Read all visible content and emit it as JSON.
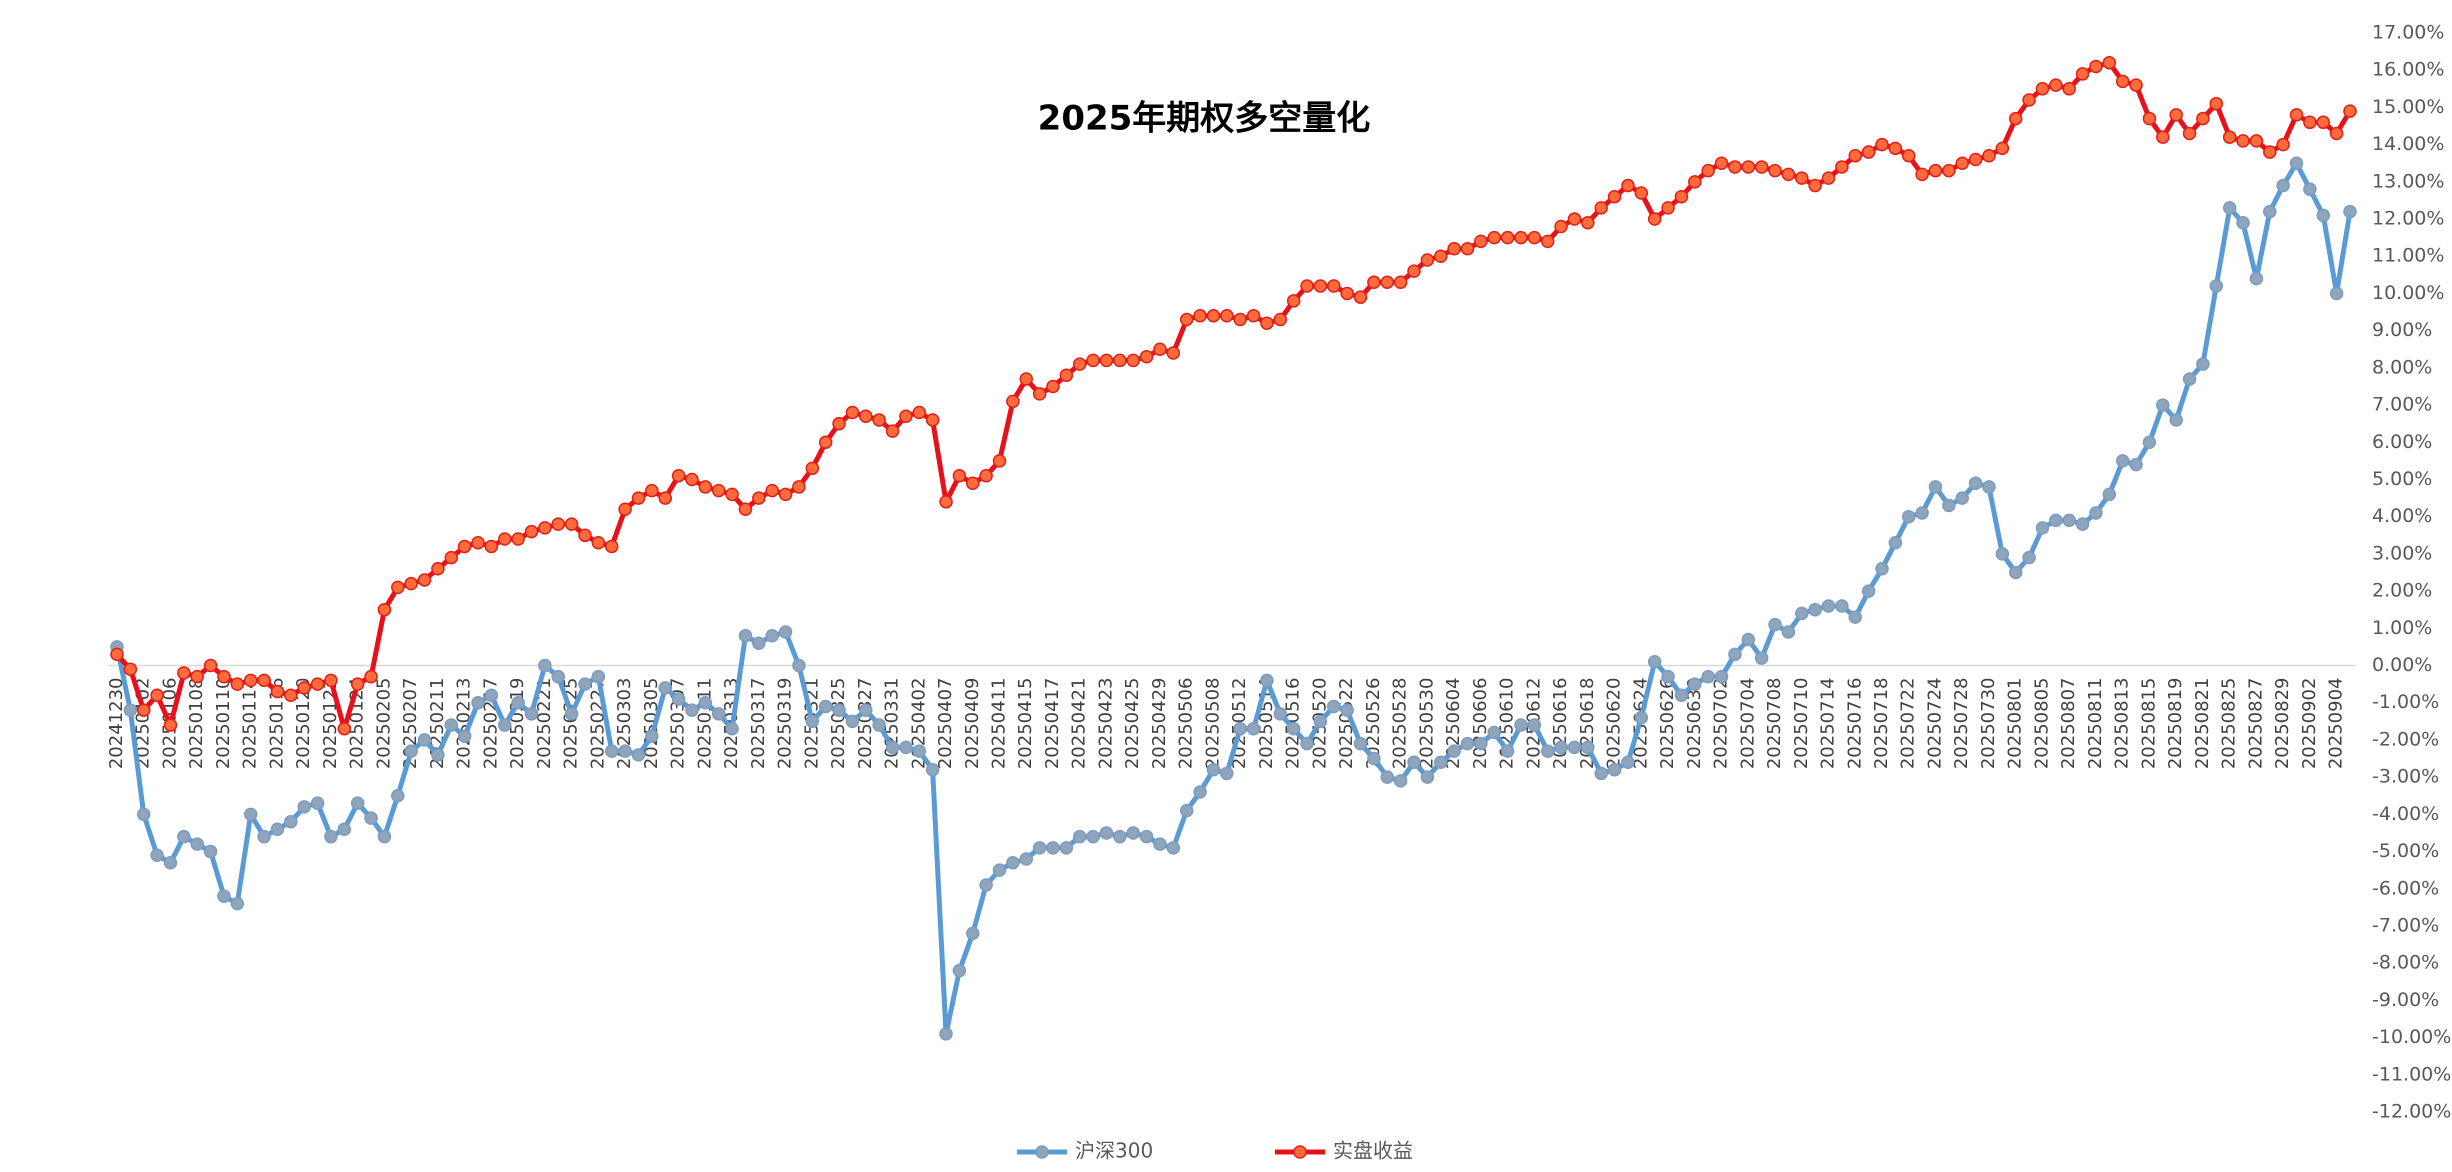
{
  "chart_data": {
    "type": "line",
    "title": "2025年期权多空量化",
    "categories": [
      "20241230",
      null,
      "20250102",
      null,
      "20250106",
      null,
      "20250108",
      null,
      "20250110",
      null,
      "20250114",
      null,
      "20250116",
      null,
      "20250120",
      null,
      "20250122",
      null,
      "20250124",
      null,
      "20250205",
      null,
      "20250207",
      null,
      "20250211",
      null,
      "20250213",
      null,
      "20250217",
      null,
      "20250219",
      null,
      "20250221",
      null,
      "20250225",
      null,
      "20250227",
      null,
      "20250303",
      null,
      "20250305",
      null,
      "20250307",
      null,
      "20250311",
      null,
      "20250313",
      null,
      "20250317",
      null,
      "20250319",
      null,
      "20250321",
      null,
      "20250325",
      null,
      "20250327",
      null,
      "20250331",
      null,
      "20250402",
      null,
      "20250407",
      null,
      "20250409",
      null,
      "20250411",
      null,
      "20250415",
      null,
      "20250417",
      null,
      "20250421",
      null,
      "20250423",
      null,
      "20250425",
      null,
      "20250429",
      null,
      "20250506",
      null,
      "20250508",
      null,
      "20250512",
      null,
      "20250514",
      null,
      "20250516",
      null,
      "20250520",
      null,
      "20250522",
      null,
      "20250526",
      null,
      "20250528",
      null,
      "20250530",
      null,
      "20250604",
      null,
      "20250606",
      null,
      "20250610",
      null,
      "20250612",
      null,
      "20250616",
      null,
      "20250618",
      null,
      "20250620",
      null,
      "20250624",
      null,
      "20250626",
      null,
      "20250630",
      null,
      "20250702",
      null,
      "20250704",
      null,
      "20250708",
      null,
      "20250710",
      null,
      "20250714",
      null,
      "20250716",
      null,
      "20250718",
      null,
      "20250722",
      null,
      "20250724",
      null,
      "20250728",
      null,
      "20250730",
      null,
      "20250801",
      null,
      "20250805",
      null,
      "20250807",
      null,
      "20250811",
      null,
      "20250813",
      null,
      "20250815",
      null,
      "20250819",
      null,
      "20250821",
      null,
      "20250825",
      null,
      "20250827",
      null,
      "20250829",
      null,
      "20250902",
      null,
      "20250904",
      null
    ],
    "series": [
      {
        "name": "沪深300",
        "color": "#5b9bd5",
        "marker_fill": "#8fa5bb",
        "marker_stroke": "#7b9cc0",
        "values": [
          0.5,
          -1.2,
          -4.0,
          -5.1,
          -5.3,
          -4.6,
          -4.8,
          -5.0,
          -6.2,
          -6.4,
          -4.0,
          -4.6,
          -4.4,
          -4.2,
          -3.8,
          -3.7,
          -4.6,
          -4.4,
          -3.7,
          -4.1,
          -4.6,
          -3.5,
          -2.3,
          -2.0,
          -2.4,
          -1.6,
          -1.9,
          -1.0,
          -0.8,
          -1.6,
          -1.0,
          -1.3,
          0.0,
          -0.3,
          -1.3,
          -0.5,
          -0.3,
          -2.3,
          -2.3,
          -2.4,
          -1.9,
          -0.6,
          -0.9,
          -1.2,
          -1.0,
          -1.3,
          -1.7,
          0.8,
          0.6,
          0.8,
          0.9,
          0.0,
          -1.5,
          -1.1,
          -1.2,
          -1.5,
          -1.2,
          -1.6,
          -2.2,
          -2.2,
          -2.3,
          -2.8,
          -9.9,
          -8.2,
          -7.2,
          -5.9,
          -5.5,
          -5.3,
          -5.2,
          -4.9,
          -4.9,
          -4.9,
          -4.6,
          -4.6,
          -4.5,
          -4.6,
          -4.5,
          -4.6,
          -4.8,
          -4.9,
          -3.9,
          -3.4,
          -2.8,
          -2.9,
          -1.7,
          -1.7,
          -0.4,
          -1.3,
          -1.7,
          -2.1,
          -1.5,
          -1.1,
          -1.2,
          -2.1,
          -2.5,
          -3.0,
          -3.1,
          -2.6,
          -3.0,
          -2.6,
          -2.3,
          -2.1,
          -2.1,
          -1.8,
          -2.3,
          -1.6,
          -1.6,
          -2.3,
          -2.2,
          -2.2,
          -2.2,
          -2.9,
          -2.8,
          -2.6,
          -1.4,
          0.1,
          -0.3,
          -0.8,
          -0.5,
          -0.3,
          -0.3,
          0.3,
          0.7,
          0.2,
          1.1,
          0.9,
          1.4,
          1.5,
          1.6,
          1.6,
          1.3,
          2.0,
          2.6,
          3.3,
          4.0,
          4.1,
          4.8,
          4.3,
          4.5,
          4.9,
          4.8,
          3.0,
          2.5,
          2.9,
          3.7,
          3.9,
          3.9,
          3.8,
          4.1,
          4.6,
          5.5,
          5.4,
          6.0,
          7.0,
          6.6,
          7.7,
          8.1,
          10.2,
          12.3,
          11.9,
          10.4,
          12.2,
          12.9,
          13.5,
          12.8,
          12.1,
          10.0,
          12.2
        ]
      },
      {
        "name": "实盘收益",
        "color": "#e8101a",
        "marker_fill": "#ff6b3a",
        "marker_stroke": "#e0201a",
        "values": [
          0.3,
          -0.1,
          -1.2,
          -0.8,
          -1.6,
          -0.2,
          -0.3,
          0.0,
          -0.3,
          -0.5,
          -0.4,
          -0.4,
          -0.7,
          -0.8,
          -0.6,
          -0.5,
          -0.4,
          -1.7,
          -0.5,
          -0.3,
          1.5,
          2.1,
          2.2,
          2.3,
          2.6,
          2.9,
          3.2,
          3.3,
          3.2,
          3.4,
          3.4,
          3.6,
          3.7,
          3.8,
          3.8,
          3.5,
          3.3,
          3.2,
          4.2,
          4.5,
          4.7,
          4.5,
          5.1,
          5.0,
          4.8,
          4.7,
          4.6,
          4.2,
          4.5,
          4.7,
          4.6,
          4.8,
          5.3,
          6.0,
          6.5,
          6.8,
          6.7,
          6.6,
          6.3,
          6.7,
          6.8,
          6.6,
          4.4,
          5.1,
          4.9,
          5.1,
          5.5,
          7.1,
          7.7,
          7.3,
          7.5,
          7.8,
          8.1,
          8.2,
          8.2,
          8.2,
          8.2,
          8.3,
          8.5,
          8.4,
          9.3,
          9.4,
          9.4,
          9.4,
          9.3,
          9.4,
          9.2,
          9.3,
          9.8,
          10.2,
          10.2,
          10.2,
          10.0,
          9.9,
          10.3,
          10.3,
          10.3,
          10.6,
          10.9,
          11.0,
          11.2,
          11.2,
          11.4,
          11.5,
          11.5,
          11.5,
          11.5,
          11.4,
          11.8,
          12.0,
          11.9,
          12.3,
          12.6,
          12.9,
          12.7,
          12.0,
          12.3,
          12.6,
          13.0,
          13.3,
          13.5,
          13.4,
          13.4,
          13.4,
          13.3,
          13.2,
          13.1,
          12.9,
          13.1,
          13.4,
          13.7,
          13.8,
          14.0,
          13.9,
          13.7,
          13.2,
          13.3,
          13.3,
          13.5,
          13.6,
          13.7,
          13.9,
          14.7,
          15.2,
          15.5,
          15.6,
          15.5,
          15.9,
          16.1,
          16.2,
          15.7,
          15.6,
          14.7,
          14.2,
          14.8,
          14.3,
          14.7,
          15.1,
          14.2,
          14.1,
          14.1,
          13.8,
          14.0,
          14.8,
          14.6,
          14.6,
          14.3,
          14.9
        ]
      }
    ],
    "ylim": [
      -12,
      17
    ],
    "yticks": [
      {
        "value": -12,
        "label": "-12.00%"
      },
      {
        "value": -11,
        "label": "-11.00%"
      },
      {
        "value": -10,
        "label": "-10.00%"
      },
      {
        "value": -9,
        "label": "-9.00%"
      },
      {
        "value": -8,
        "label": "-8.00%"
      },
      {
        "value": -7,
        "label": "-7.00%"
      },
      {
        "value": -6,
        "label": "-6.00%"
      },
      {
        "value": -5,
        "label": "-5.00%"
      },
      {
        "value": -4,
        "label": "-4.00%"
      },
      {
        "value": -3,
        "label": "-3.00%"
      },
      {
        "value": -2,
        "label": "-2.00%"
      },
      {
        "value": -1,
        "label": "-1.00%"
      },
      {
        "value": 0,
        "label": "0.00%"
      },
      {
        "value": 1,
        "label": "1.00%"
      },
      {
        "value": 2,
        "label": "2.00%"
      },
      {
        "value": 3,
        "label": "3.00%"
      },
      {
        "value": 4,
        "label": "4.00%"
      },
      {
        "value": 5,
        "label": "5.00%"
      },
      {
        "value": 6,
        "label": "6.00%"
      },
      {
        "value": 7,
        "label": "7.00%"
      },
      {
        "value": 8,
        "label": "8.00%"
      },
      {
        "value": 9,
        "label": "9.00%"
      },
      {
        "value": 10,
        "label": "10.00%"
      },
      {
        "value": 11,
        "label": "11.00%"
      },
      {
        "value": 12,
        "label": "12.00%"
      },
      {
        "value": 13,
        "label": "13.00%"
      },
      {
        "value": 14,
        "label": "14.00%"
      },
      {
        "value": 15,
        "label": "15.00%"
      },
      {
        "value": 16,
        "label": "16.00%"
      },
      {
        "value": 17,
        "label": "17.00%"
      }
    ],
    "grid": false,
    "legend": "bottom"
  }
}
